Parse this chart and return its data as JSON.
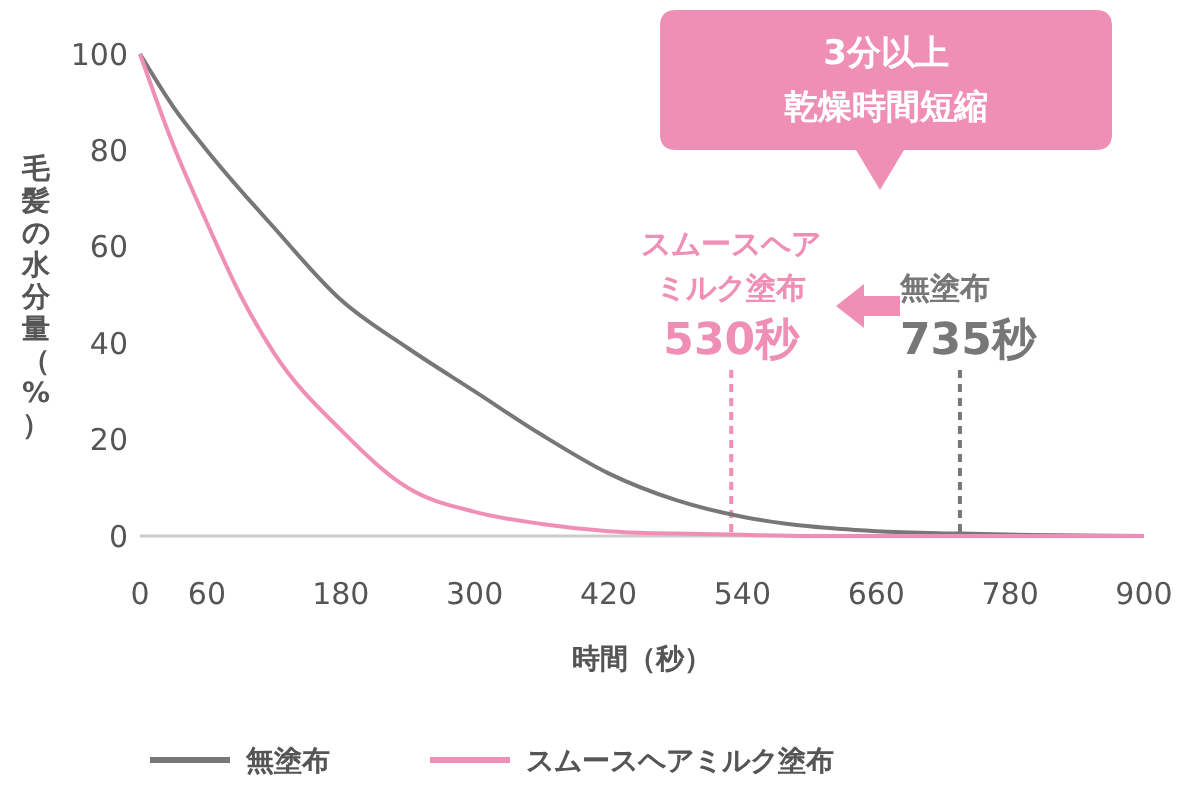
{
  "chart_data": {
    "type": "line",
    "xlabel": "時間（秒）",
    "ylabel": "毛髪の水分量（%）",
    "xlim": [
      0,
      900
    ],
    "ylim": [
      0,
      100
    ],
    "xticks": [
      0,
      60,
      180,
      300,
      420,
      540,
      660,
      780,
      900
    ],
    "yticks": [
      0,
      20,
      40,
      60,
      80,
      100
    ],
    "grid": false,
    "legend": "bottom",
    "marker": "none",
    "line_style": "solid",
    "series": [
      {
        "name": "無塗布",
        "color": "#777777",
        "x": [
          0,
          30,
          60,
          120,
          180,
          240,
          300,
          360,
          420,
          480,
          540,
          600,
          660,
          735,
          800,
          900
        ],
        "values": [
          100,
          89,
          80,
          64,
          49,
          39,
          30,
          21,
          13,
          7.5,
          4,
          2,
          1,
          0.5,
          0.2,
          0
        ]
      },
      {
        "name": "スムースヘアミルク塗布",
        "color": "#f08fb5",
        "x": [
          0,
          30,
          60,
          90,
          120,
          180,
          240,
          300,
          360,
          420,
          480,
          530,
          600,
          700,
          900
        ],
        "values": [
          100,
          81,
          65,
          50,
          38,
          22,
          10,
          5,
          2.5,
          1,
          0.5,
          0.3,
          0,
          0,
          0
        ]
      }
    ],
    "ref_lines": [
      {
        "axis": "x",
        "value": 530,
        "label": "530秒",
        "color": "#f08fb5",
        "line_style": "dashed"
      },
      {
        "axis": "x",
        "value": 735,
        "label": "735秒",
        "color": "#777777",
        "line_style": "dashed"
      }
    ],
    "annotations": [
      "3分以上",
      "乾燥時間短縮",
      "スムースヘア",
      "ミルク塗布",
      "無塗布"
    ]
  }
}
